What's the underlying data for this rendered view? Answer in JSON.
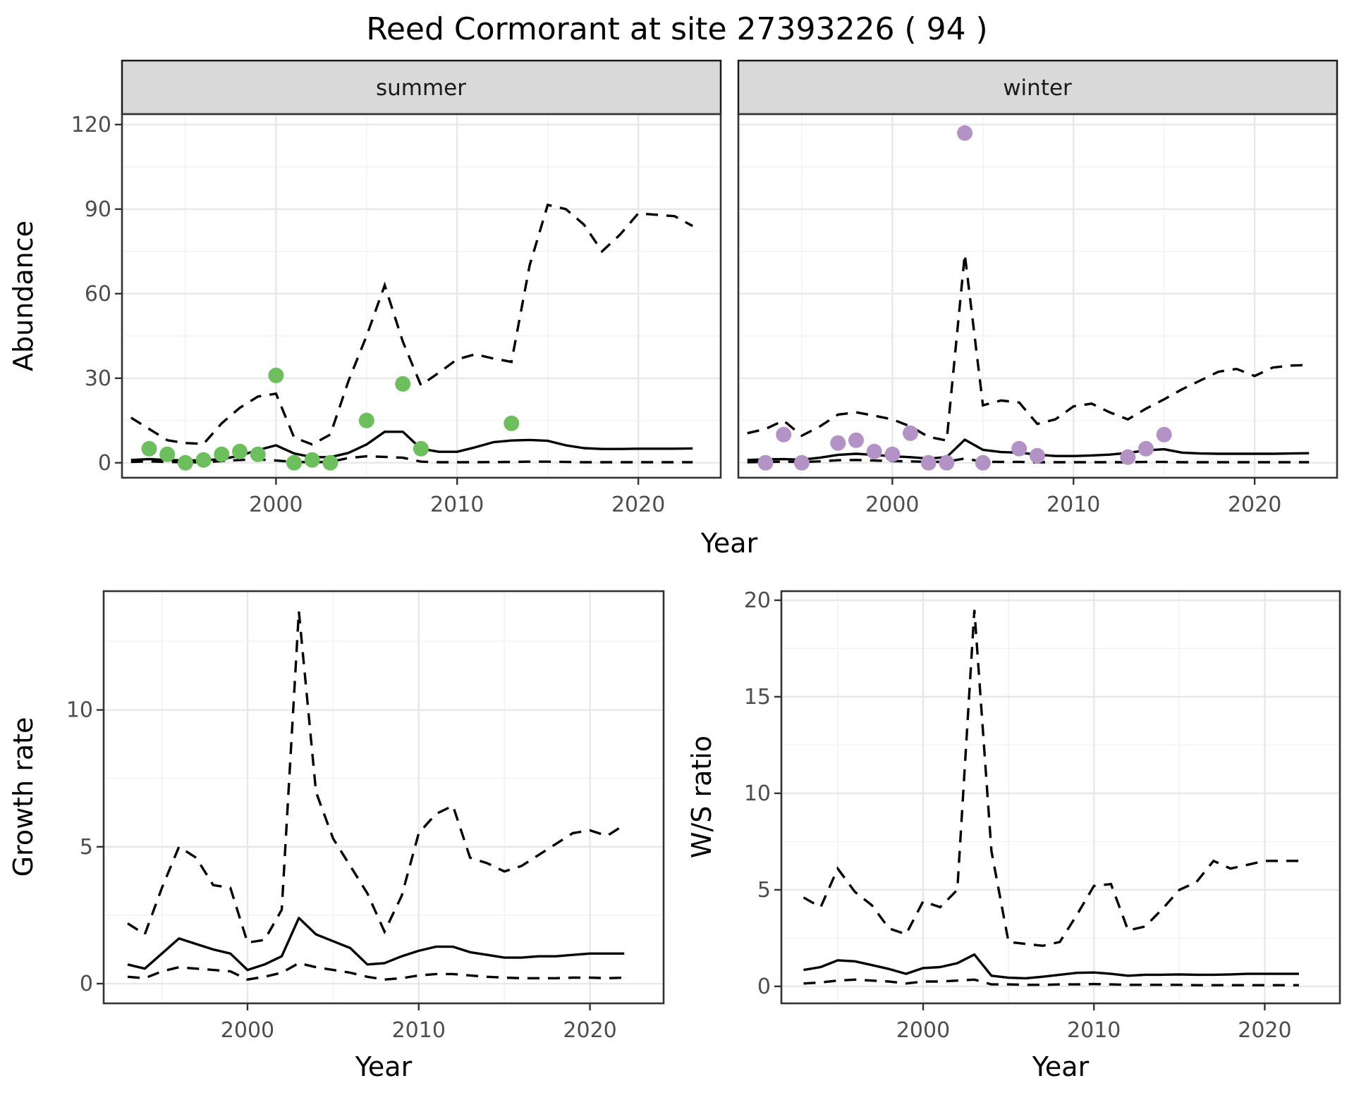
{
  "chart_data": {
    "type": "line",
    "title": "Reed Cormorant at site 27393226 ( 94 )",
    "facet_labels": {
      "summer": "summer",
      "winter": "winter"
    },
    "axis_titles": {
      "abundance": "Abundance",
      "year_top": "Year",
      "growth": "Growth rate",
      "year_growth": "Year",
      "ws": "W/S ratio",
      "year_ws": "Year"
    },
    "colors": {
      "summer_points": "#6dbe5c",
      "winter_points": "#b392c6",
      "median_line": "#000000",
      "ci_line": "#000000",
      "grid_major": "#e8e8e8",
      "grid_minor": "#f3f3f3",
      "panel_border": "#333333",
      "strip_fill": "#d9d9d9",
      "axis_text": "#4d4d4d"
    },
    "legend_position": "none",
    "grid": "on",
    "line_styles": {
      "median": "solid",
      "credible_interval": "dashed"
    },
    "panels": [
      {
        "id": "abundance-summer",
        "facet": "summer",
        "ylabel": "Abundance",
        "xlabel": "Year",
        "x_domain": [
          1991.5,
          2024.55
        ],
        "y_domain": [
          -5.3,
          123.7
        ],
        "x_ticks": [
          2000,
          2010,
          2020
        ],
        "x_minor": [
          1995,
          2005,
          2015
        ],
        "y_ticks": [
          0,
          30,
          60,
          90,
          120
        ],
        "y_minor": [
          15,
          45,
          75,
          105
        ],
        "show_y_tick_labels": true,
        "series": {
          "years": [
            1992,
            1993,
            1994,
            1995,
            1996,
            1997,
            1998,
            1999,
            2000,
            2001,
            2002,
            2003,
            2004,
            2005,
            2006,
            2007,
            2008,
            2009,
            2010,
            2011,
            2012,
            2013,
            2014,
            2015,
            2016,
            2017,
            2018,
            2019,
            2020,
            2021,
            2022,
            2023
          ],
          "median": [
            1,
            1.3,
            1,
            0.8,
            0.9,
            1.3,
            2.5,
            4.5,
            6.2,
            3.3,
            2,
            2,
            3.5,
            6.5,
            11,
            11,
            5,
            3.9,
            3.9,
            5.5,
            7.3,
            7.9,
            8.1,
            7.8,
            6.2,
            5.2,
            4.9,
            4.9,
            5,
            5,
            5,
            5.1
          ],
          "upper": [
            16,
            12,
            8,
            7,
            6.7,
            14,
            19.5,
            23.5,
            24.5,
            9,
            6.5,
            10,
            29,
            45,
            63,
            43,
            27.5,
            32,
            36.7,
            38.5,
            37,
            35.8,
            70,
            91.5,
            90,
            84.5,
            75,
            81,
            88.5,
            88,
            87.5,
            84
          ],
          "lower": [
            0.3,
            0.5,
            0.3,
            0.2,
            0.2,
            0.6,
            1,
            1.2,
            0.8,
            0.3,
            0.2,
            0.3,
            1.7,
            2.3,
            2.1,
            1.8,
            0.4,
            0.2,
            0.2,
            0.2,
            0.25,
            0.3,
            0.4,
            0.4,
            0.3,
            0.2,
            0.2,
            0.2,
            0.2,
            0.2,
            0.2,
            0.2
          ]
        },
        "points": {
          "years": [
            1993,
            1994,
            1995,
            1996,
            1997,
            1998,
            1999,
            2000,
            2001,
            2002,
            2003,
            2005,
            2007,
            2008,
            2013
          ],
          "values": [
            5,
            3,
            0,
            1,
            3,
            4,
            3,
            31,
            0,
            1,
            0,
            15,
            28,
            5,
            14
          ],
          "color_key": "summer_points"
        }
      },
      {
        "id": "abundance-winter",
        "facet": "winter",
        "ylabel": "Abundance",
        "xlabel": "Year",
        "x_domain": [
          1991.5,
          2024.55
        ],
        "y_domain": [
          -5.3,
          123.7
        ],
        "x_ticks": [
          2000,
          2010,
          2020
        ],
        "x_minor": [
          1995,
          2005,
          2015
        ],
        "y_ticks": [
          0,
          30,
          60,
          90,
          120
        ],
        "y_minor": [
          15,
          45,
          75,
          105
        ],
        "show_y_tick_labels": false,
        "series": {
          "years": [
            1992,
            1993,
            1994,
            1995,
            1996,
            1997,
            1998,
            1999,
            2000,
            2001,
            2002,
            2003,
            2004,
            2005,
            2006,
            2007,
            2008,
            2009,
            2010,
            2011,
            2012,
            2013,
            2014,
            2015,
            2016,
            2017,
            2018,
            2019,
            2020,
            2021,
            2022,
            2023
          ],
          "median": [
            1,
            1.2,
            1.3,
            1.1,
            1.8,
            2.8,
            3.2,
            2.8,
            2.3,
            2,
            1.5,
            2,
            8.2,
            4.6,
            3.8,
            3.6,
            2.9,
            2.4,
            2.4,
            2.6,
            2.9,
            3.5,
            4.4,
            4.8,
            3.6,
            3.3,
            3.2,
            3.2,
            3.2,
            3.2,
            3.3,
            3.4
          ],
          "upper": [
            10.5,
            12,
            15,
            9.6,
            12.9,
            17.1,
            17.9,
            16.7,
            15.4,
            12.9,
            9.2,
            7.9,
            74,
            20.4,
            22.1,
            21.4,
            13.8,
            15.4,
            20,
            21,
            17.9,
            15.4,
            19.2,
            22.5,
            26.1,
            29.2,
            32.3,
            33.3,
            30.8,
            33.8,
            34.5,
            34.7
          ],
          "lower": [
            0.2,
            0.3,
            0.4,
            0.3,
            0.5,
            0.9,
            1,
            0.8,
            0.6,
            0.5,
            0.3,
            0.4,
            1.5,
            0.4,
            0.3,
            0.3,
            0.2,
            0.2,
            0.2,
            0.2,
            0.2,
            0.2,
            0.3,
            0.3,
            0.2,
            0.2,
            0.2,
            0.2,
            0.2,
            0.2,
            0.2,
            0.2
          ]
        },
        "points": {
          "years": [
            1993,
            1994,
            1995,
            1997,
            1998,
            1999,
            2000,
            2001,
            2002,
            2003,
            2004,
            2005,
            2007,
            2008,
            2013,
            2014,
            2015
          ],
          "values": [
            0,
            10,
            0,
            7,
            8,
            4,
            3,
            10.5,
            0,
            0,
            117,
            0,
            5,
            2.5,
            2,
            5,
            10
          ],
          "color_key": "winter_points"
        }
      },
      {
        "id": "growth-rate",
        "facet": null,
        "ylabel": "Growth rate",
        "xlabel": "Year",
        "x_domain": [
          1991.6,
          2024.3
        ],
        "y_domain": [
          -0.72,
          14.34
        ],
        "x_ticks": [
          2000,
          2010,
          2020
        ],
        "x_minor": [
          1995,
          2005,
          2015
        ],
        "y_ticks": [
          0,
          5,
          10
        ],
        "y_minor": [
          2.5,
          7.5,
          12.5
        ],
        "show_y_tick_labels": true,
        "series": {
          "years": [
            1993,
            1994,
            1995,
            1996,
            1997,
            1998,
            1999,
            2000,
            2001,
            2002,
            2003,
            2004,
            2005,
            2006,
            2007,
            2008,
            2009,
            2010,
            2011,
            2012,
            2013,
            2014,
            2015,
            2016,
            2017,
            2018,
            2019,
            2020,
            2021,
            2022
          ],
          "median": [
            0.7,
            0.55,
            1.1,
            1.65,
            1.45,
            1.25,
            1.1,
            0.5,
            0.7,
            1,
            2.4,
            1.8,
            1.55,
            1.3,
            0.7,
            0.75,
            1,
            1.2,
            1.35,
            1.35,
            1.15,
            1.05,
            0.95,
            0.95,
            1,
            1,
            1.05,
            1.1,
            1.1,
            1.1
          ],
          "upper": [
            2.2,
            1.8,
            3.5,
            5,
            4.6,
            3.6,
            3.5,
            1.5,
            1.6,
            2.7,
            13.6,
            7,
            5.3,
            4.3,
            3.3,
            1.9,
            3.2,
            5.5,
            6.2,
            6.5,
            4.6,
            4.4,
            4.1,
            4.3,
            4.7,
            5.1,
            5.5,
            5.6,
            5.4,
            5.8
          ],
          "lower": [
            0.25,
            0.2,
            0.45,
            0.6,
            0.55,
            0.5,
            0.45,
            0.15,
            0.25,
            0.4,
            0.75,
            0.6,
            0.5,
            0.4,
            0.25,
            0.15,
            0.2,
            0.3,
            0.35,
            0.35,
            0.3,
            0.25,
            0.22,
            0.2,
            0.2,
            0.2,
            0.22,
            0.22,
            0.2,
            0.22
          ]
        },
        "points": null
      },
      {
        "id": "ws-ratio",
        "facet": null,
        "ylabel": "W/S ratio",
        "xlabel": "Year",
        "x_domain": [
          1991.7,
          2024.4
        ],
        "y_domain": [
          -0.88,
          20.47
        ],
        "x_ticks": [
          2000,
          2010,
          2020
        ],
        "x_minor": [
          1995,
          2005,
          2015
        ],
        "y_ticks": [
          0,
          5,
          10,
          15,
          20
        ],
        "y_minor": [
          2.5,
          7.5,
          12.5,
          17.5
        ],
        "show_y_tick_labels": true,
        "series": {
          "years": [
            1993,
            1994,
            1995,
            1996,
            1997,
            1998,
            1999,
            2000,
            2001,
            2002,
            2003,
            2004,
            2005,
            2006,
            2007,
            2008,
            2009,
            2010,
            2011,
            2012,
            2013,
            2014,
            2015,
            2016,
            2017,
            2018,
            2019,
            2020,
            2021,
            2022
          ],
          "median": [
            0.85,
            1,
            1.35,
            1.3,
            1.1,
            0.9,
            0.65,
            0.95,
            1,
            1.2,
            1.65,
            0.55,
            0.45,
            0.42,
            0.5,
            0.6,
            0.7,
            0.72,
            0.65,
            0.55,
            0.6,
            0.6,
            0.62,
            0.6,
            0.6,
            0.62,
            0.65,
            0.65,
            0.65,
            0.65
          ],
          "upper": [
            4.6,
            4.1,
            6.1,
            4.9,
            4.2,
            3,
            2.7,
            4.4,
            4.1,
            5,
            19.5,
            7,
            2.3,
            2.2,
            2.1,
            2.3,
            3.7,
            5.2,
            5.3,
            2.9,
            3.1,
            4,
            5,
            5.4,
            6.5,
            6.1,
            6.3,
            6.5,
            6.5,
            6.5
          ],
          "lower": [
            0.15,
            0.2,
            0.3,
            0.35,
            0.3,
            0.25,
            0.15,
            0.25,
            0.25,
            0.3,
            0.35,
            0.1,
            0.1,
            0.08,
            0.08,
            0.1,
            0.1,
            0.12,
            0.1,
            0.08,
            0.08,
            0.08,
            0.08,
            0.06,
            0.06,
            0.06,
            0.06,
            0.06,
            0.06,
            0.06
          ]
        },
        "points": null
      }
    ]
  }
}
